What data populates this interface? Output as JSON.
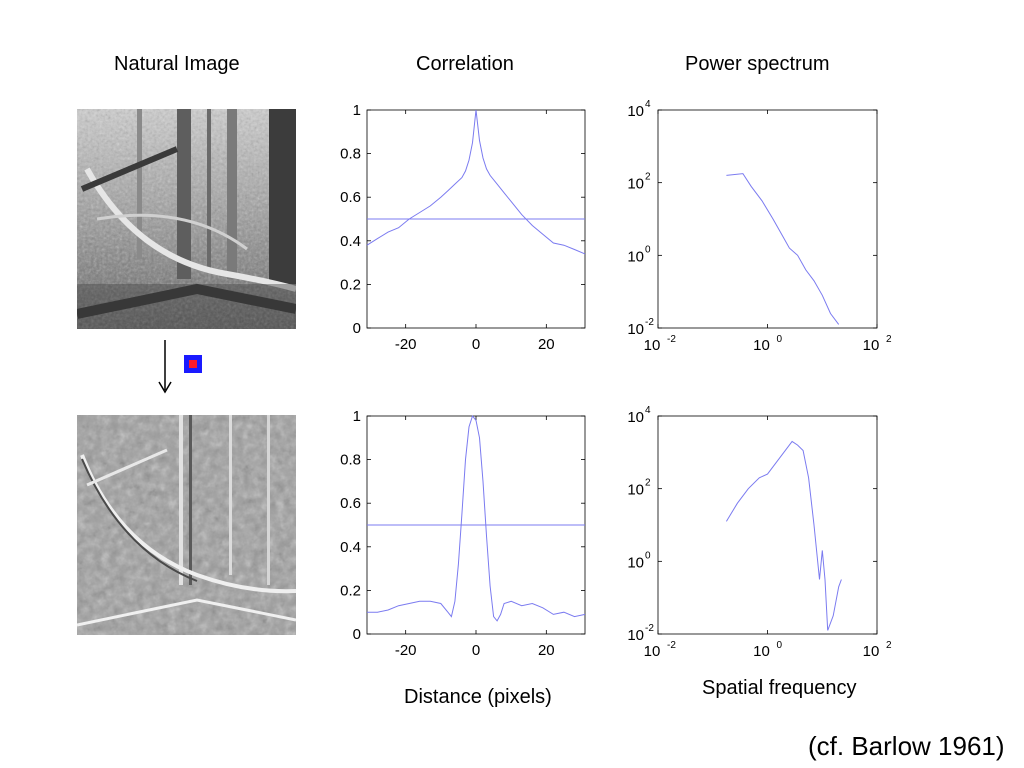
{
  "titles": {
    "natural_image": "Natural Image",
    "correlation": "Correlation",
    "power_spectrum": "Power spectrum"
  },
  "xlabels": {
    "distance": "Distance (pixels)",
    "spatial_frequency": "Spatial frequency"
  },
  "citation": "(cf. Barlow 1961)",
  "icons": {
    "arrow": "down-arrow-icon",
    "filter": "center-surround-filter-icon"
  },
  "colors": {
    "line": "#7b7bf0",
    "filter_outer": "#1a1aff",
    "filter_center": "#ff1a2a"
  },
  "chart_data": [
    {
      "id": "corr_top",
      "type": "line",
      "xlim": [
        -31,
        31
      ],
      "ylim": [
        0,
        1
      ],
      "xticks": [
        -20,
        0,
        20
      ],
      "yticks": [
        0,
        0.2,
        0.4,
        0.6,
        0.8,
        1
      ],
      "ytick_labels": [
        "0",
        "0.2",
        "0.4",
        "0.6",
        "0.8",
        "1"
      ],
      "hline": 0.5,
      "x": [
        -31,
        -28,
        -25,
        -22,
        -19,
        -16,
        -13,
        -10,
        -8,
        -6,
        -4,
        -3,
        -2,
        -1,
        0,
        1,
        2,
        3,
        4,
        6,
        8,
        10,
        13,
        16,
        19,
        22,
        25,
        28,
        31
      ],
      "y": [
        0.38,
        0.41,
        0.44,
        0.46,
        0.5,
        0.53,
        0.56,
        0.6,
        0.63,
        0.66,
        0.69,
        0.72,
        0.77,
        0.85,
        1.0,
        0.86,
        0.78,
        0.73,
        0.7,
        0.66,
        0.62,
        0.58,
        0.52,
        0.47,
        0.43,
        0.39,
        0.38,
        0.36,
        0.34
      ]
    },
    {
      "id": "corr_bottom",
      "type": "line",
      "xlim": [
        -31,
        31
      ],
      "ylim": [
        0,
        1
      ],
      "xticks": [
        -20,
        0,
        20
      ],
      "yticks": [
        0,
        0.2,
        0.4,
        0.6,
        0.8,
        1
      ],
      "ytick_labels": [
        "0",
        "0.2",
        "0.4",
        "0.6",
        "0.8",
        "1"
      ],
      "hline": 0.5,
      "x": [
        -31,
        -28,
        -25,
        -22,
        -19,
        -16,
        -13,
        -10,
        -8,
        -7,
        -6,
        -5,
        -4,
        -3,
        -2,
        -1,
        0,
        1,
        2,
        3,
        4,
        5,
        6,
        7,
        8,
        10,
        13,
        16,
        19,
        22,
        25,
        28,
        31
      ],
      "y": [
        0.1,
        0.1,
        0.11,
        0.13,
        0.14,
        0.15,
        0.15,
        0.14,
        0.1,
        0.08,
        0.15,
        0.32,
        0.55,
        0.8,
        0.95,
        1.0,
        0.98,
        0.9,
        0.7,
        0.45,
        0.22,
        0.08,
        0.06,
        0.09,
        0.14,
        0.15,
        0.13,
        0.14,
        0.12,
        0.09,
        0.1,
        0.08,
        0.09
      ]
    },
    {
      "id": "ps_top",
      "type": "line",
      "xscale": "log",
      "yscale": "log",
      "xlim": [
        -2,
        2
      ],
      "ylim": [
        -2,
        4
      ],
      "xtick_exponents": [
        -2,
        0,
        2
      ],
      "ytick_exponents": [
        -2,
        0,
        2,
        4
      ],
      "log_x": [
        -0.75,
        -0.45,
        -0.3,
        -0.1,
        0.1,
        0.25,
        0.4,
        0.55,
        0.7,
        0.85,
        1.0,
        1.15,
        1.3
      ],
      "log_y": [
        2.2,
        2.25,
        1.9,
        1.5,
        1.0,
        0.6,
        0.2,
        0.0,
        -0.4,
        -0.7,
        -1.1,
        -1.6,
        -1.9
      ]
    },
    {
      "id": "ps_bottom",
      "type": "line",
      "xscale": "log",
      "yscale": "log",
      "xlim": [
        -2,
        2
      ],
      "ylim": [
        -2,
        4
      ],
      "xtick_exponents": [
        -2,
        0,
        2
      ],
      "ytick_exponents": [
        -2,
        0,
        2,
        4
      ],
      "log_x": [
        -0.75,
        -0.55,
        -0.35,
        -0.15,
        0.0,
        0.15,
        0.3,
        0.45,
        0.55,
        0.65,
        0.75,
        0.85,
        0.95,
        1.0,
        1.05,
        1.1,
        1.2,
        1.3,
        1.35
      ],
      "log_y": [
        1.1,
        1.6,
        2.0,
        2.3,
        2.4,
        2.7,
        3.0,
        3.3,
        3.2,
        3.05,
        2.3,
        1.0,
        -0.5,
        0.3,
        -0.5,
        -1.9,
        -1.5,
        -0.7,
        -0.5
      ]
    }
  ]
}
